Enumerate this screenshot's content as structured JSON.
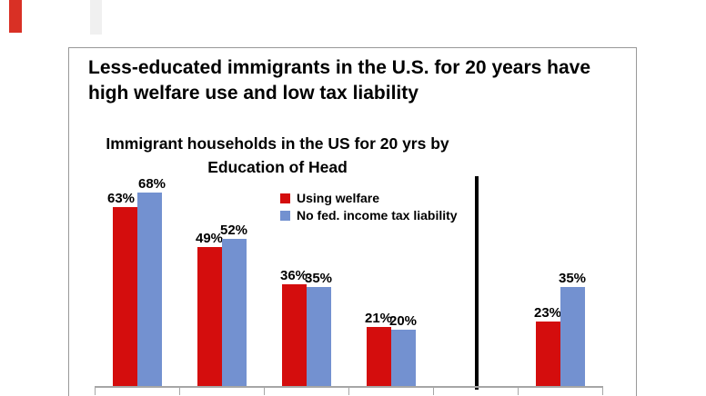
{
  "slide": {
    "title_line1": "Less-educated immigrants in the U.S. for 20 years have",
    "title_line2": "high welfare use and low tax liability"
  },
  "chart_data": {
    "type": "bar",
    "title_line1": "Immigrant households in the US for 20 yrs by",
    "title_line2": "Education of Head",
    "categories": [
      "",
      "",
      "",
      "",
      ""
    ],
    "series": [
      {
        "name": "Using welfare",
        "color": "#d40d0d",
        "values": [
          63,
          49,
          36,
          21,
          23
        ]
      },
      {
        "name": "No fed. income tax liability",
        "color": "#7391d0",
        "values": [
          68,
          52,
          35,
          20,
          35
        ]
      }
    ],
    "value_labels": [
      [
        "63%",
        "49%",
        "36%",
        "21%",
        "23%"
      ],
      [
        "68%",
        "52%",
        "35%",
        "20%",
        "35%"
      ]
    ],
    "legend_position": "inside-top-center",
    "grid": "off",
    "x_axis_labels_visible": false,
    "ylim_implied": [
      0,
      100
    ],
    "divider": {
      "after_group_index": 3,
      "color": "#000000"
    },
    "axis_color": "#a6a6a6",
    "text_color": "#000000",
    "frame_border_color": "#999999"
  },
  "artifacts": {
    "top_left_red_fragment_color": "#d93025",
    "top_gray_band_color": "#f0f0f0"
  }
}
